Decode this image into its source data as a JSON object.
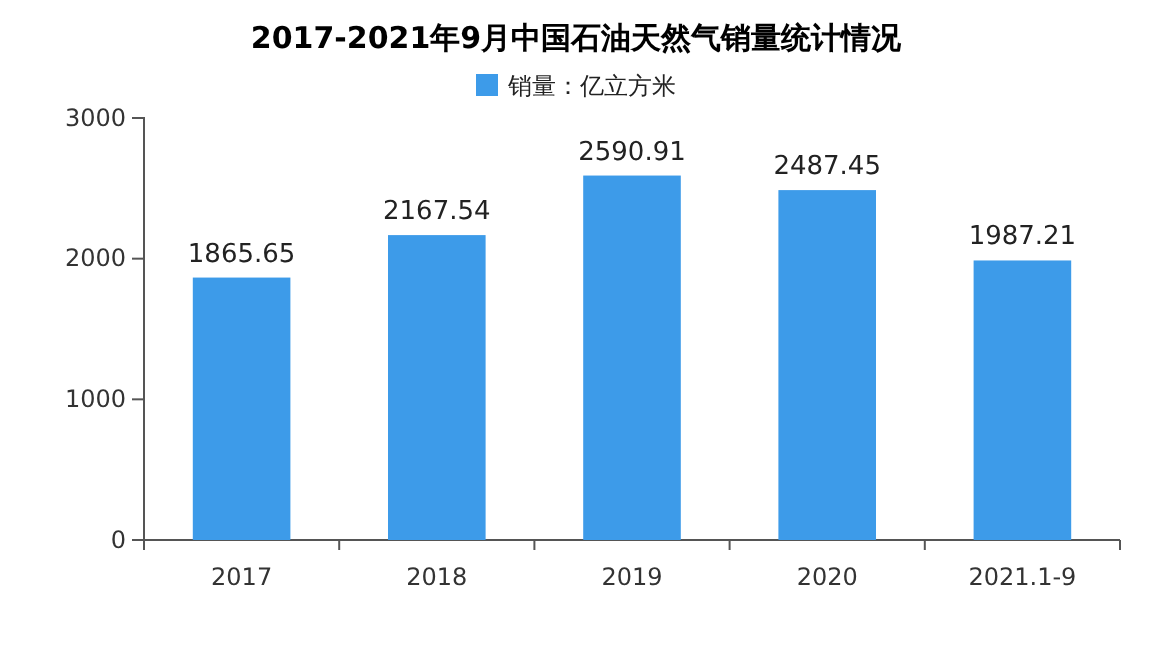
{
  "chart_data": {
    "type": "bar",
    "title": "2017-2021年9月中国石油天然气销量统计情况",
    "categories": [
      "2017",
      "2018",
      "2019",
      "2020",
      "2021.1-9"
    ],
    "series": [
      {
        "name": "销量：亿立方米",
        "color": "#3d9be9",
        "values": [
          1865.65,
          2167.54,
          2590.91,
          2487.45,
          1987.21
        ]
      }
    ],
    "ylim": [
      0,
      3000
    ],
    "yticks": [
      0,
      1000,
      2000,
      3000
    ],
    "data_labels": true,
    "legend": "top",
    "grid": false
  }
}
